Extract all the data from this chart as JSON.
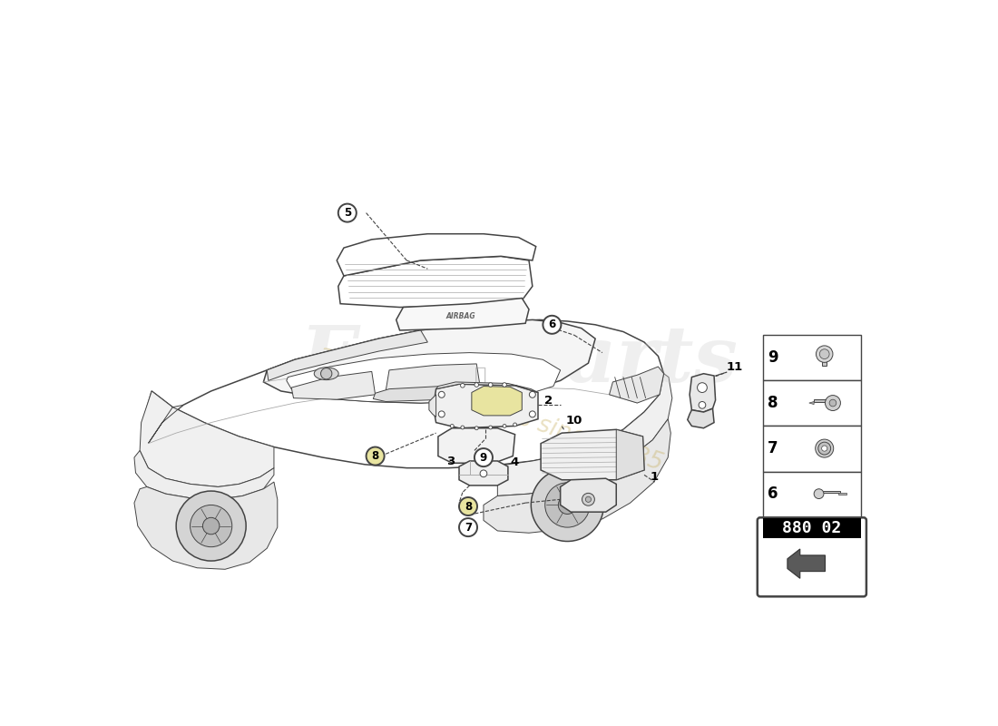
{
  "bg_color": "#ffffff",
  "part_number_box": "880 02",
  "parts_table": [
    {
      "num": "9"
    },
    {
      "num": "8"
    },
    {
      "num": "7"
    },
    {
      "num": "6"
    }
  ],
  "yellow_accent": "#e8e4a0",
  "outline_color": "#444444",
  "light_gray": "#d8d8d8",
  "medium_gray": "#aaaaaa",
  "dark_gray": "#666666",
  "watermark_color": "#c8b060",
  "watermark_alpha": 0.38
}
